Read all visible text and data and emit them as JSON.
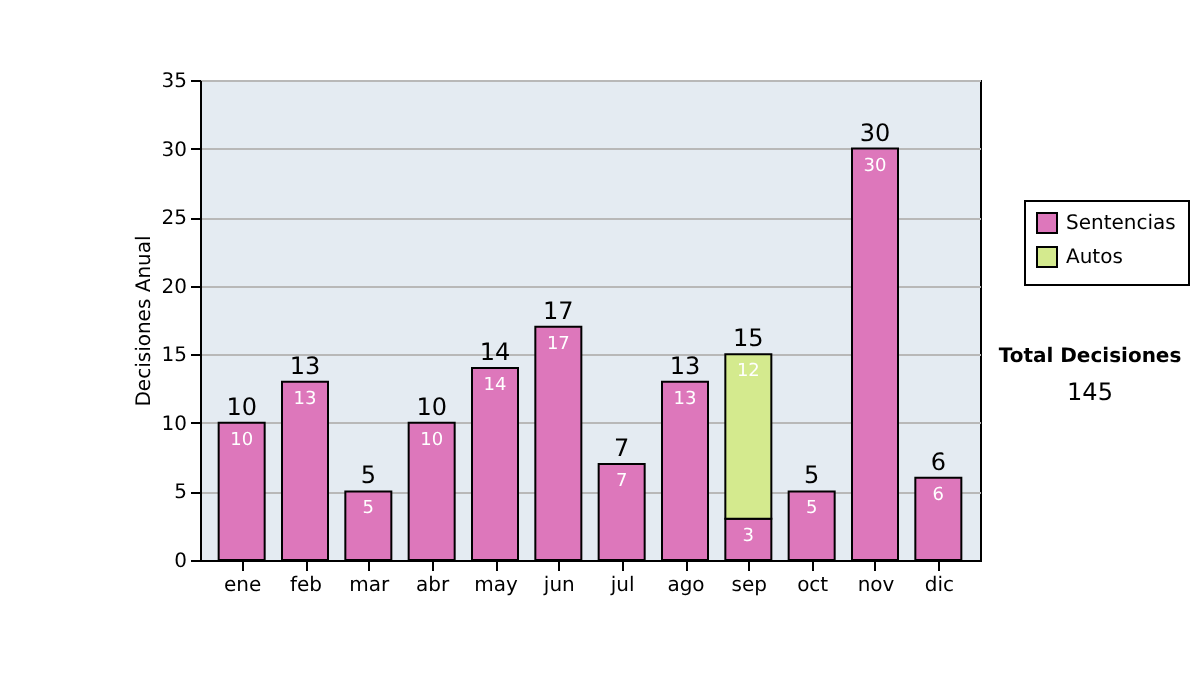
{
  "chart_data": {
    "type": "bar",
    "stacked": true,
    "ylabel": "Decisiones Anual",
    "categories": [
      "ene",
      "feb",
      "mar",
      "abr",
      "may",
      "jun",
      "jul",
      "ago",
      "sep",
      "oct",
      "nov",
      "dic"
    ],
    "series": [
      {
        "name": "Sentencias",
        "color": "#dd77bb",
        "values": [
          10,
          13,
          5,
          10,
          14,
          17,
          7,
          13,
          3,
          5,
          30,
          6
        ]
      },
      {
        "name": "Autos",
        "color": "#d4ea8e",
        "values": [
          null,
          null,
          null,
          null,
          null,
          null,
          null,
          null,
          12,
          null,
          null,
          null
        ]
      }
    ],
    "data_labels": true,
    "totals": [
      "10",
      "13",
      "5",
      "10",
      "14",
      "17",
      "7",
      "13",
      "15",
      "5",
      "30",
      "6"
    ],
    "ylim": [
      0,
      35
    ],
    "yticks": [
      0,
      5,
      10,
      15,
      20,
      25,
      30,
      35
    ],
    "grid": "y",
    "legend": "right",
    "annotations": [
      "Total Decisiones",
      "145"
    ]
  }
}
